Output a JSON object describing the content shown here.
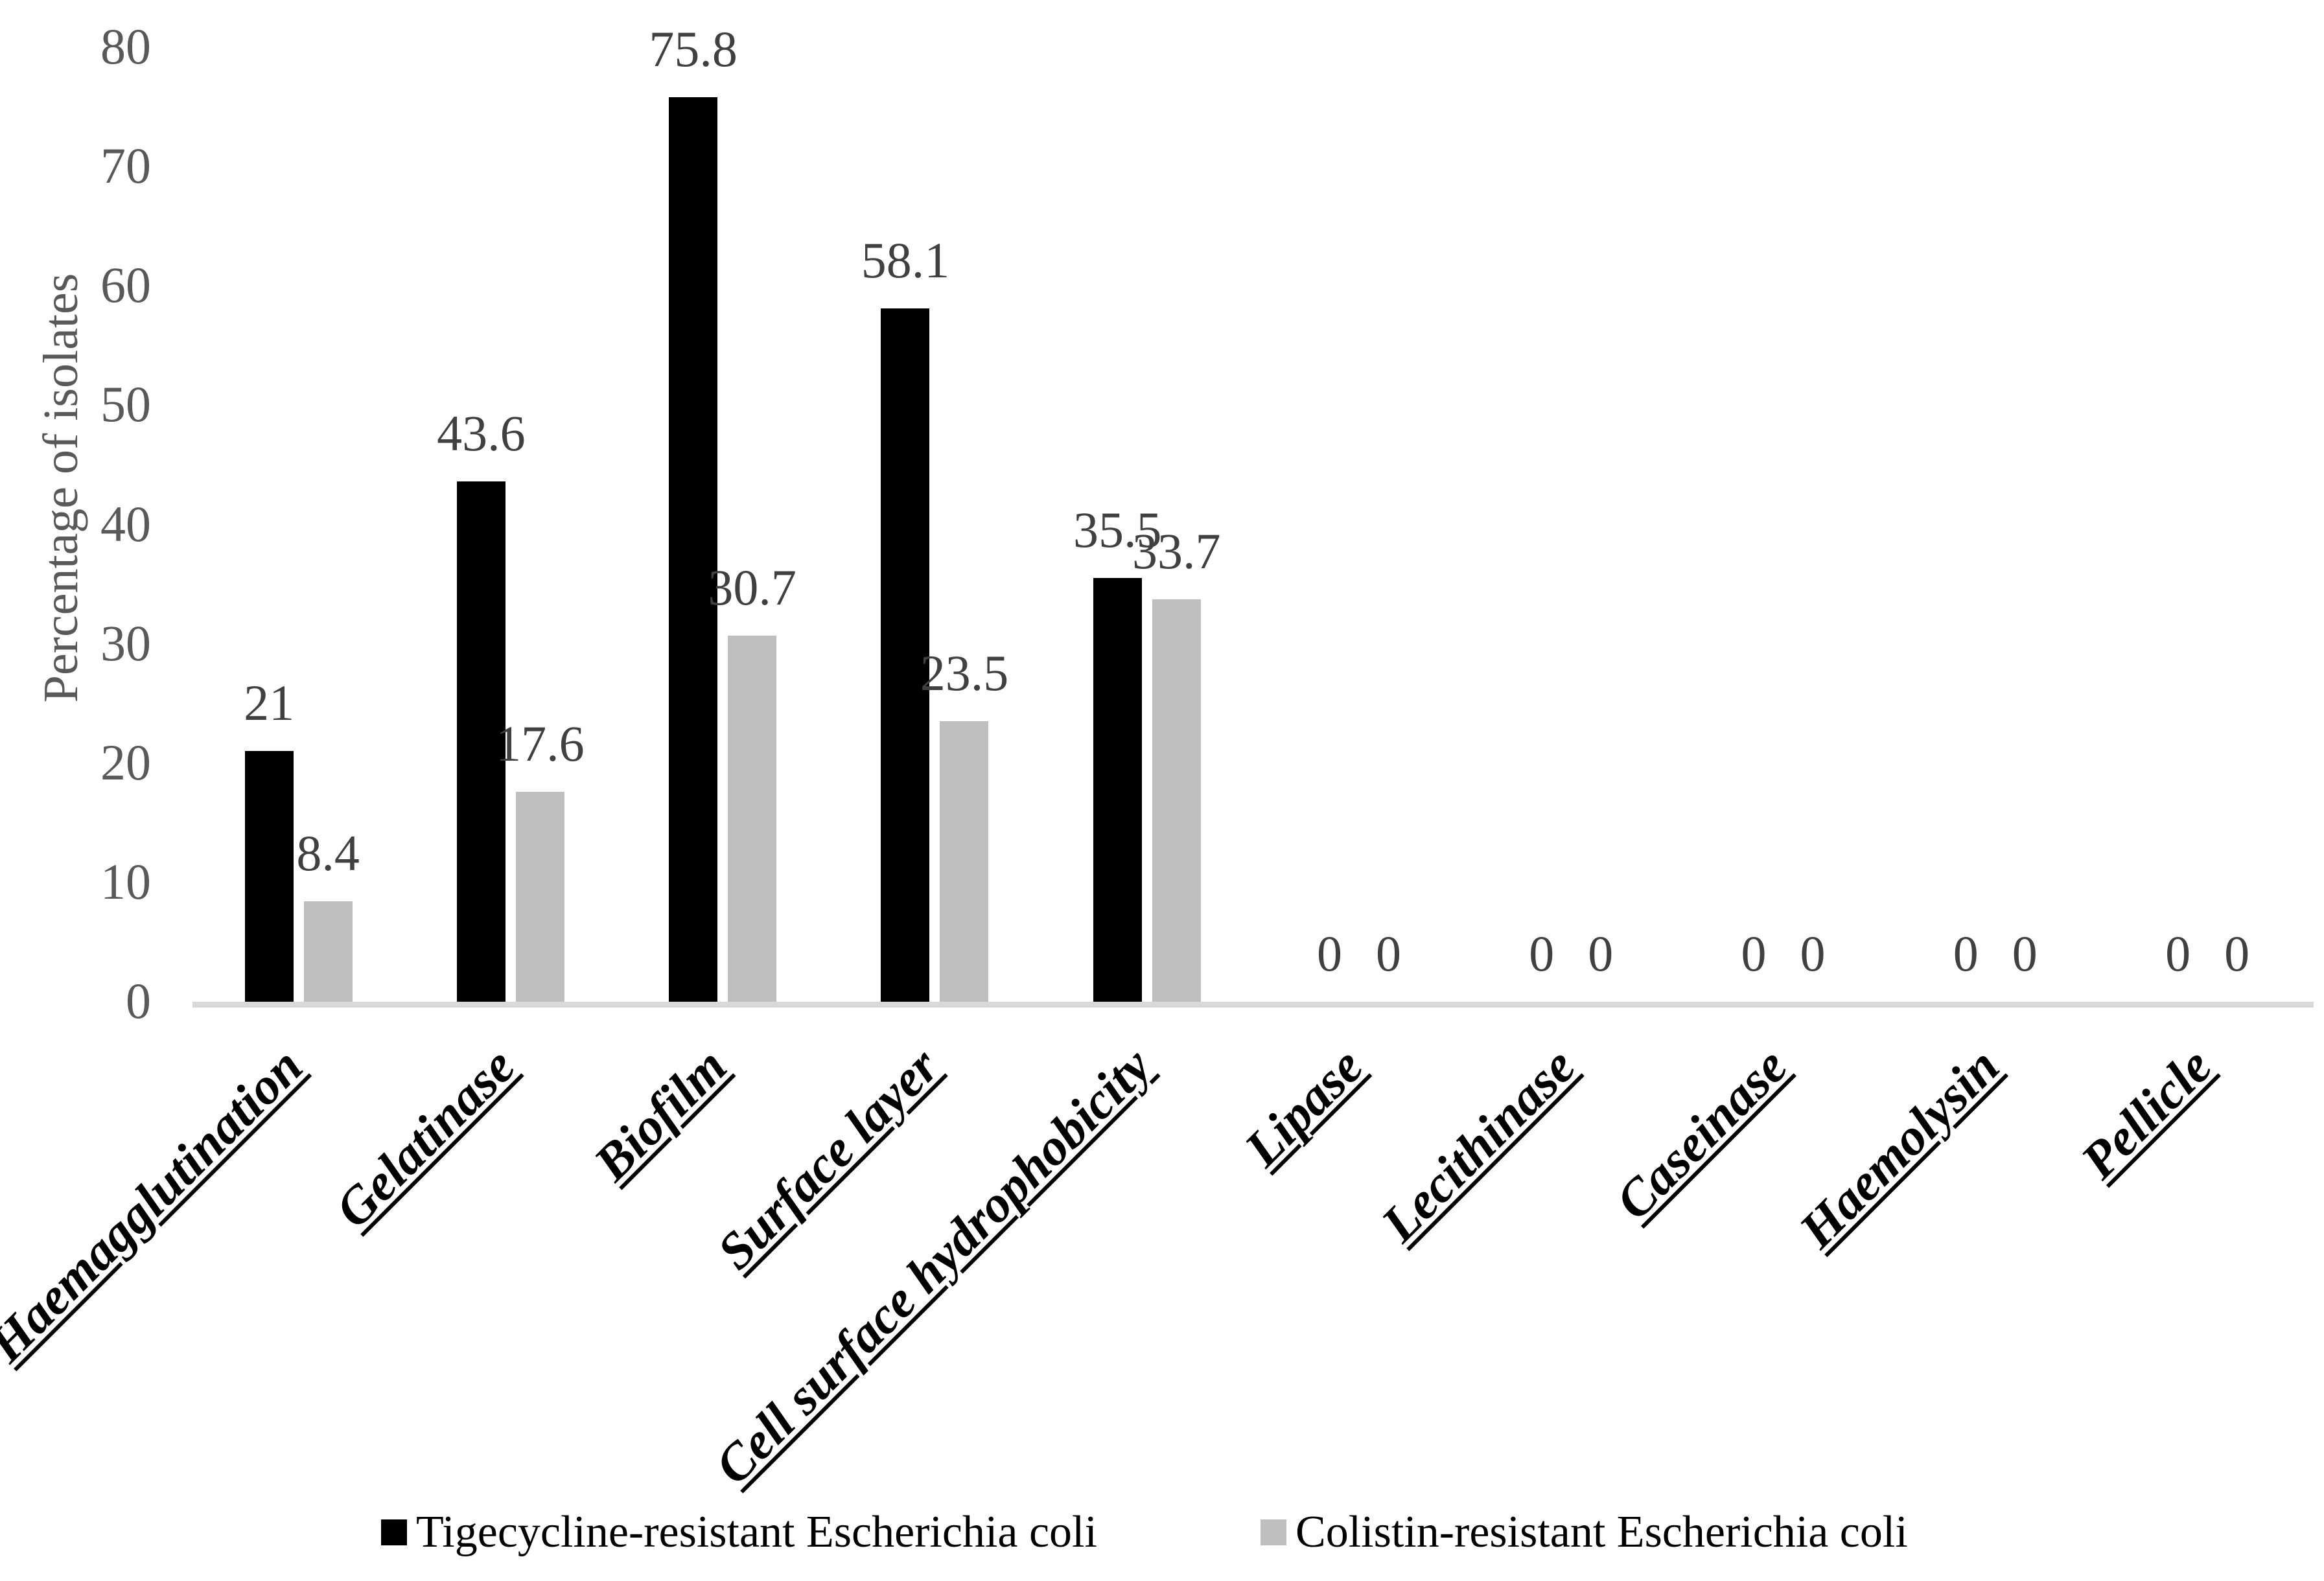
{
  "chart_data": {
    "type": "bar",
    "title": "",
    "xlabel": "",
    "ylabel": "Percentage of isolates",
    "ylim": [
      0,
      80
    ],
    "ytick_interval": 10,
    "ytick_labels": [
      "0",
      "10",
      "20",
      "30",
      "40",
      "50",
      "60",
      "70",
      "80"
    ],
    "grid": false,
    "data_labels": true,
    "legend_position": "bottom",
    "categories": [
      "Haemagglutination",
      "Gelatinase",
      "Biofilm",
      "Surface layer",
      "Cell surface hydrophobicity",
      "Lipase",
      "Lecithinase",
      "Caseinase",
      "Haemolysin",
      "Pellicle"
    ],
    "series": [
      {
        "key": "tigecycline",
        "name": "Tigecycline-resistant Escherichia coli",
        "color": "#000000",
        "values": [
          21,
          43.6,
          75.8,
          58.1,
          35.5,
          0,
          0,
          0,
          0,
          0
        ]
      },
      {
        "key": "colistin",
        "name": "Colistin-resistant Escherichia coli",
        "color": "#bfbfbf",
        "values": [
          8.4,
          17.6,
          30.7,
          23.5,
          33.7,
          0,
          0,
          0,
          0,
          0
        ]
      }
    ]
  },
  "colors": {
    "background": "#ffffff",
    "axis_line": "#d9d9d9",
    "tick_label": "#595959",
    "value_label": "#404040",
    "category_label": "#000000"
  }
}
